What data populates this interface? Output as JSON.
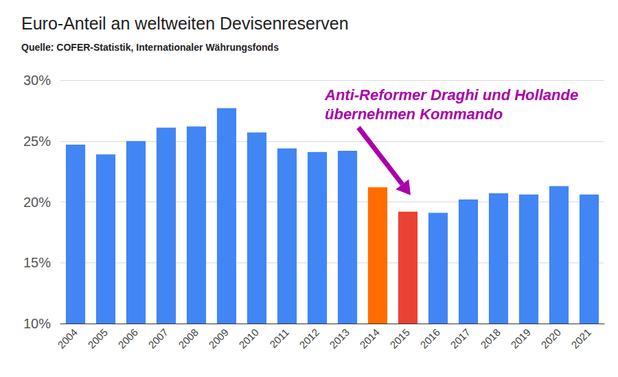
{
  "chart_data": {
    "type": "bar",
    "title": "Euro-Anteil an weltweiten Devisenreserven",
    "subtitle": "Quelle: COFER-Statistik, Internationaler Währungsfonds",
    "categories": [
      "2004",
      "2005",
      "2006",
      "2007",
      "2008",
      "2009",
      "2010",
      "2011",
      "2012",
      "2013",
      "2014",
      "2015",
      "2016",
      "2017",
      "2018",
      "2019",
      "2020",
      "2021"
    ],
    "values": [
      24.7,
      23.9,
      25.0,
      26.1,
      26.2,
      27.7,
      25.7,
      24.4,
      24.1,
      24.2,
      21.2,
      19.2,
      19.1,
      20.2,
      20.7,
      20.6,
      21.3,
      20.6
    ],
    "colors": [
      "#4285f4",
      "#4285f4",
      "#4285f4",
      "#4285f4",
      "#4285f4",
      "#4285f4",
      "#4285f4",
      "#4285f4",
      "#4285f4",
      "#4285f4",
      "#ff6d01",
      "#ea4335",
      "#4285f4",
      "#4285f4",
      "#4285f4",
      "#4285f4",
      "#4285f4",
      "#4285f4"
    ],
    "ylim": [
      10,
      30
    ],
    "yticks": [
      {
        "value": 10,
        "label": "10%"
      },
      {
        "value": 15,
        "label": "15%"
      },
      {
        "value": 20,
        "label": "20%"
      },
      {
        "value": 25,
        "label": "25%"
      },
      {
        "value": 30,
        "label": "30%"
      }
    ],
    "grid": true,
    "annotations": [
      {
        "text": "Anti-Reformer Draghi und Hollande\nübernehmen Kommando",
        "category": "2015"
      }
    ]
  }
}
